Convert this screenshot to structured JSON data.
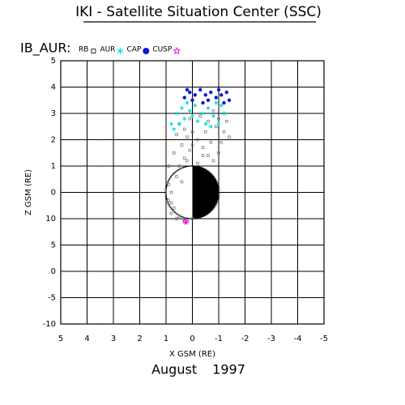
{
  "chart_data": {
    "type": "scatter",
    "title": "IKI - Satellite Situation Center (SSC)",
    "legend_title": "IB_AUR:",
    "footer": "August 1997",
    "x_label": "X GSM (RE)",
    "y_label": "Z GSM (RE)",
    "xlim": [
      5,
      -5
    ],
    "ylim": [
      -5,
      5
    ],
    "xticks": [
      5,
      4,
      3,
      2,
      1,
      0,
      -1,
      -2,
      -3,
      -4,
      -5
    ],
    "yticks": [
      5,
      4,
      3,
      2,
      1,
      0,
      {
        "value": -1,
        "label": "10"
      },
      {
        "value": -2,
        "label": "5"
      },
      {
        "value": -3,
        "label": "0"
      },
      {
        "value": -4,
        "label": "-5"
      },
      {
        "value": -5,
        "label": "-10"
      }
    ],
    "grid": true,
    "series": [
      {
        "name": "RB",
        "color": "#808080",
        "marker": "square",
        "x": [
          0.9,
          0.8,
          0.9,
          0.7,
          0.5,
          0.3,
          0.6,
          0.5,
          0.3,
          0.1,
          0.4,
          0.2,
          0.0,
          -0.2,
          -0.4,
          -0.6,
          -0.8,
          -1.0,
          -1.1,
          -1.2,
          -0.9,
          -0.6,
          -0.3,
          0.1,
          0.5,
          0.6,
          -1.3,
          -1.2,
          -0.8,
          0.2,
          -0.2,
          0.4,
          0.8,
          0.6,
          0.0,
          -0.4,
          -0.7,
          0.0,
          0.3,
          -1.4,
          -1.0,
          0.7,
          0.9,
          0.8,
          -0.5
        ],
        "y": [
          0.3,
          0.0,
          -0.3,
          -0.6,
          -0.9,
          -1.0,
          0.6,
          1.0,
          1.3,
          1.6,
          1.8,
          2.1,
          2.3,
          2.0,
          1.7,
          1.4,
          1.2,
          1.5,
          1.9,
          2.3,
          2.5,
          2.7,
          2.9,
          2.8,
          2.6,
          2.2,
          2.7,
          3.0,
          3.1,
          1.2,
          1.1,
          0.4,
          -0.8,
          -1.0,
          -1.0,
          1.4,
          1.9,
          1.8,
          2.4,
          2.1,
          2.8,
          1.5,
          1.0,
          -0.4,
          2.3
        ]
      },
      {
        "name": "AUR",
        "color": "#00e5e5",
        "marker": "asterisk",
        "x": [
          0.7,
          0.5,
          0.3,
          0.6,
          0.4,
          0.1,
          -0.1,
          -0.4,
          -0.6,
          -0.8,
          -1.0,
          -1.2,
          -0.9,
          -0.2,
          0.2,
          -0.5,
          -1.1,
          0.8,
          0.0,
          -0.7
        ],
        "y": [
          2.4,
          2.6,
          2.8,
          3.0,
          3.2,
          3.1,
          3.3,
          3.0,
          3.2,
          2.9,
          2.6,
          3.0,
          3.4,
          2.7,
          3.4,
          2.6,
          3.3,
          2.6,
          2.9,
          2.5
        ]
      },
      {
        "name": "CAP",
        "color": "#0018d8",
        "marker": "dot",
        "x": [
          0.3,
          0.1,
          -0.1,
          -0.3,
          -0.5,
          -0.7,
          -0.9,
          -1.1,
          -1.3,
          -1.4,
          -1.2,
          0.0,
          -0.6,
          0.2,
          -0.4,
          -1.0
        ],
        "y": [
          3.6,
          3.8,
          3.7,
          3.9,
          3.7,
          3.8,
          3.6,
          3.7,
          3.8,
          3.5,
          3.4,
          3.5,
          3.5,
          3.9,
          3.4,
          3.9
        ]
      },
      {
        "name": "CUSP",
        "color": "#e020e0",
        "marker": "star",
        "x": [
          0.3,
          0.25,
          0.2
        ],
        "y": [
          -1.1,
          -1.15,
          -1.1
        ]
      }
    ]
  }
}
